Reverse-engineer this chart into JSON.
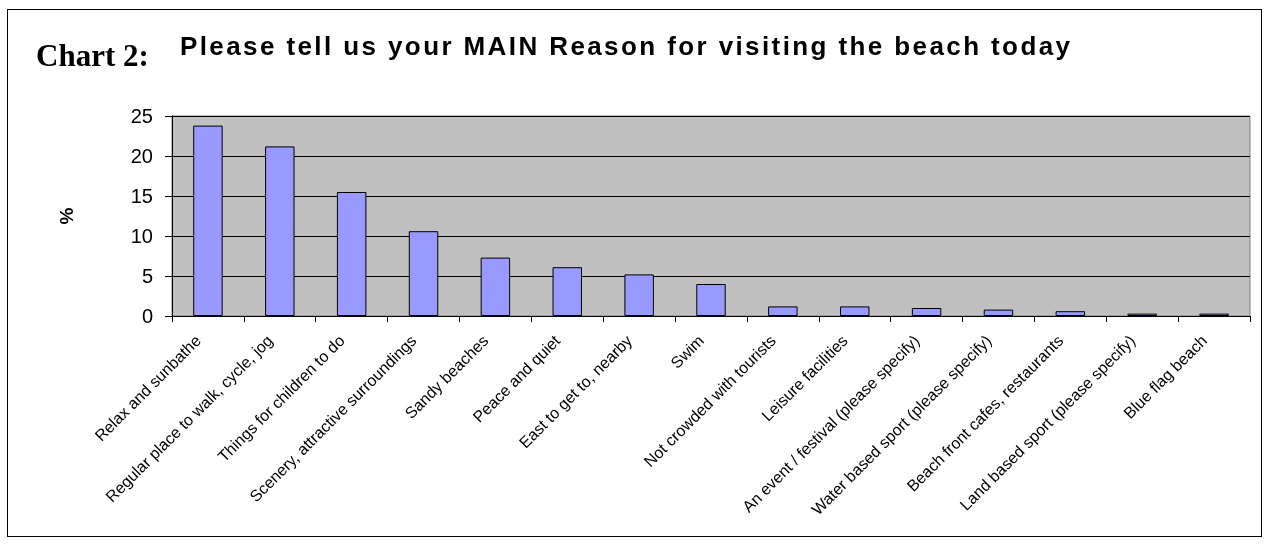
{
  "chart_data": {
    "type": "bar",
    "title": "Please tell us your MAIN Reason for visiting the beach today",
    "annotations": [
      "Chart 2:"
    ],
    "ylabel": "%",
    "categories": [
      "Relax and sunbathe",
      "Regular place to walk, cycle, jog",
      "Things for children to do",
      "Scenery, attractive surroundings",
      "Sandy beaches",
      "Peace and quiet",
      "East to get to, nearby",
      "Swim",
      "Not crowded with tourists",
      "Leisure facilities",
      "An event / festival (please specify)",
      "Water based sport (please specify)",
      "Beach front cafes, restaurants",
      "Land based sport (please specify)",
      "Blue flag beach"
    ],
    "values": [
      23.8,
      21.2,
      15.5,
      10.6,
      7.3,
      6.1,
      5.2,
      4.0,
      1.2,
      1.2,
      1.0,
      0.8,
      0.6,
      0.3,
      0.3
    ],
    "color": "#9999ff",
    "ylim": [
      0,
      25
    ],
    "yticks": [
      0,
      5,
      10,
      15,
      20,
      25
    ],
    "grid": "y"
  }
}
